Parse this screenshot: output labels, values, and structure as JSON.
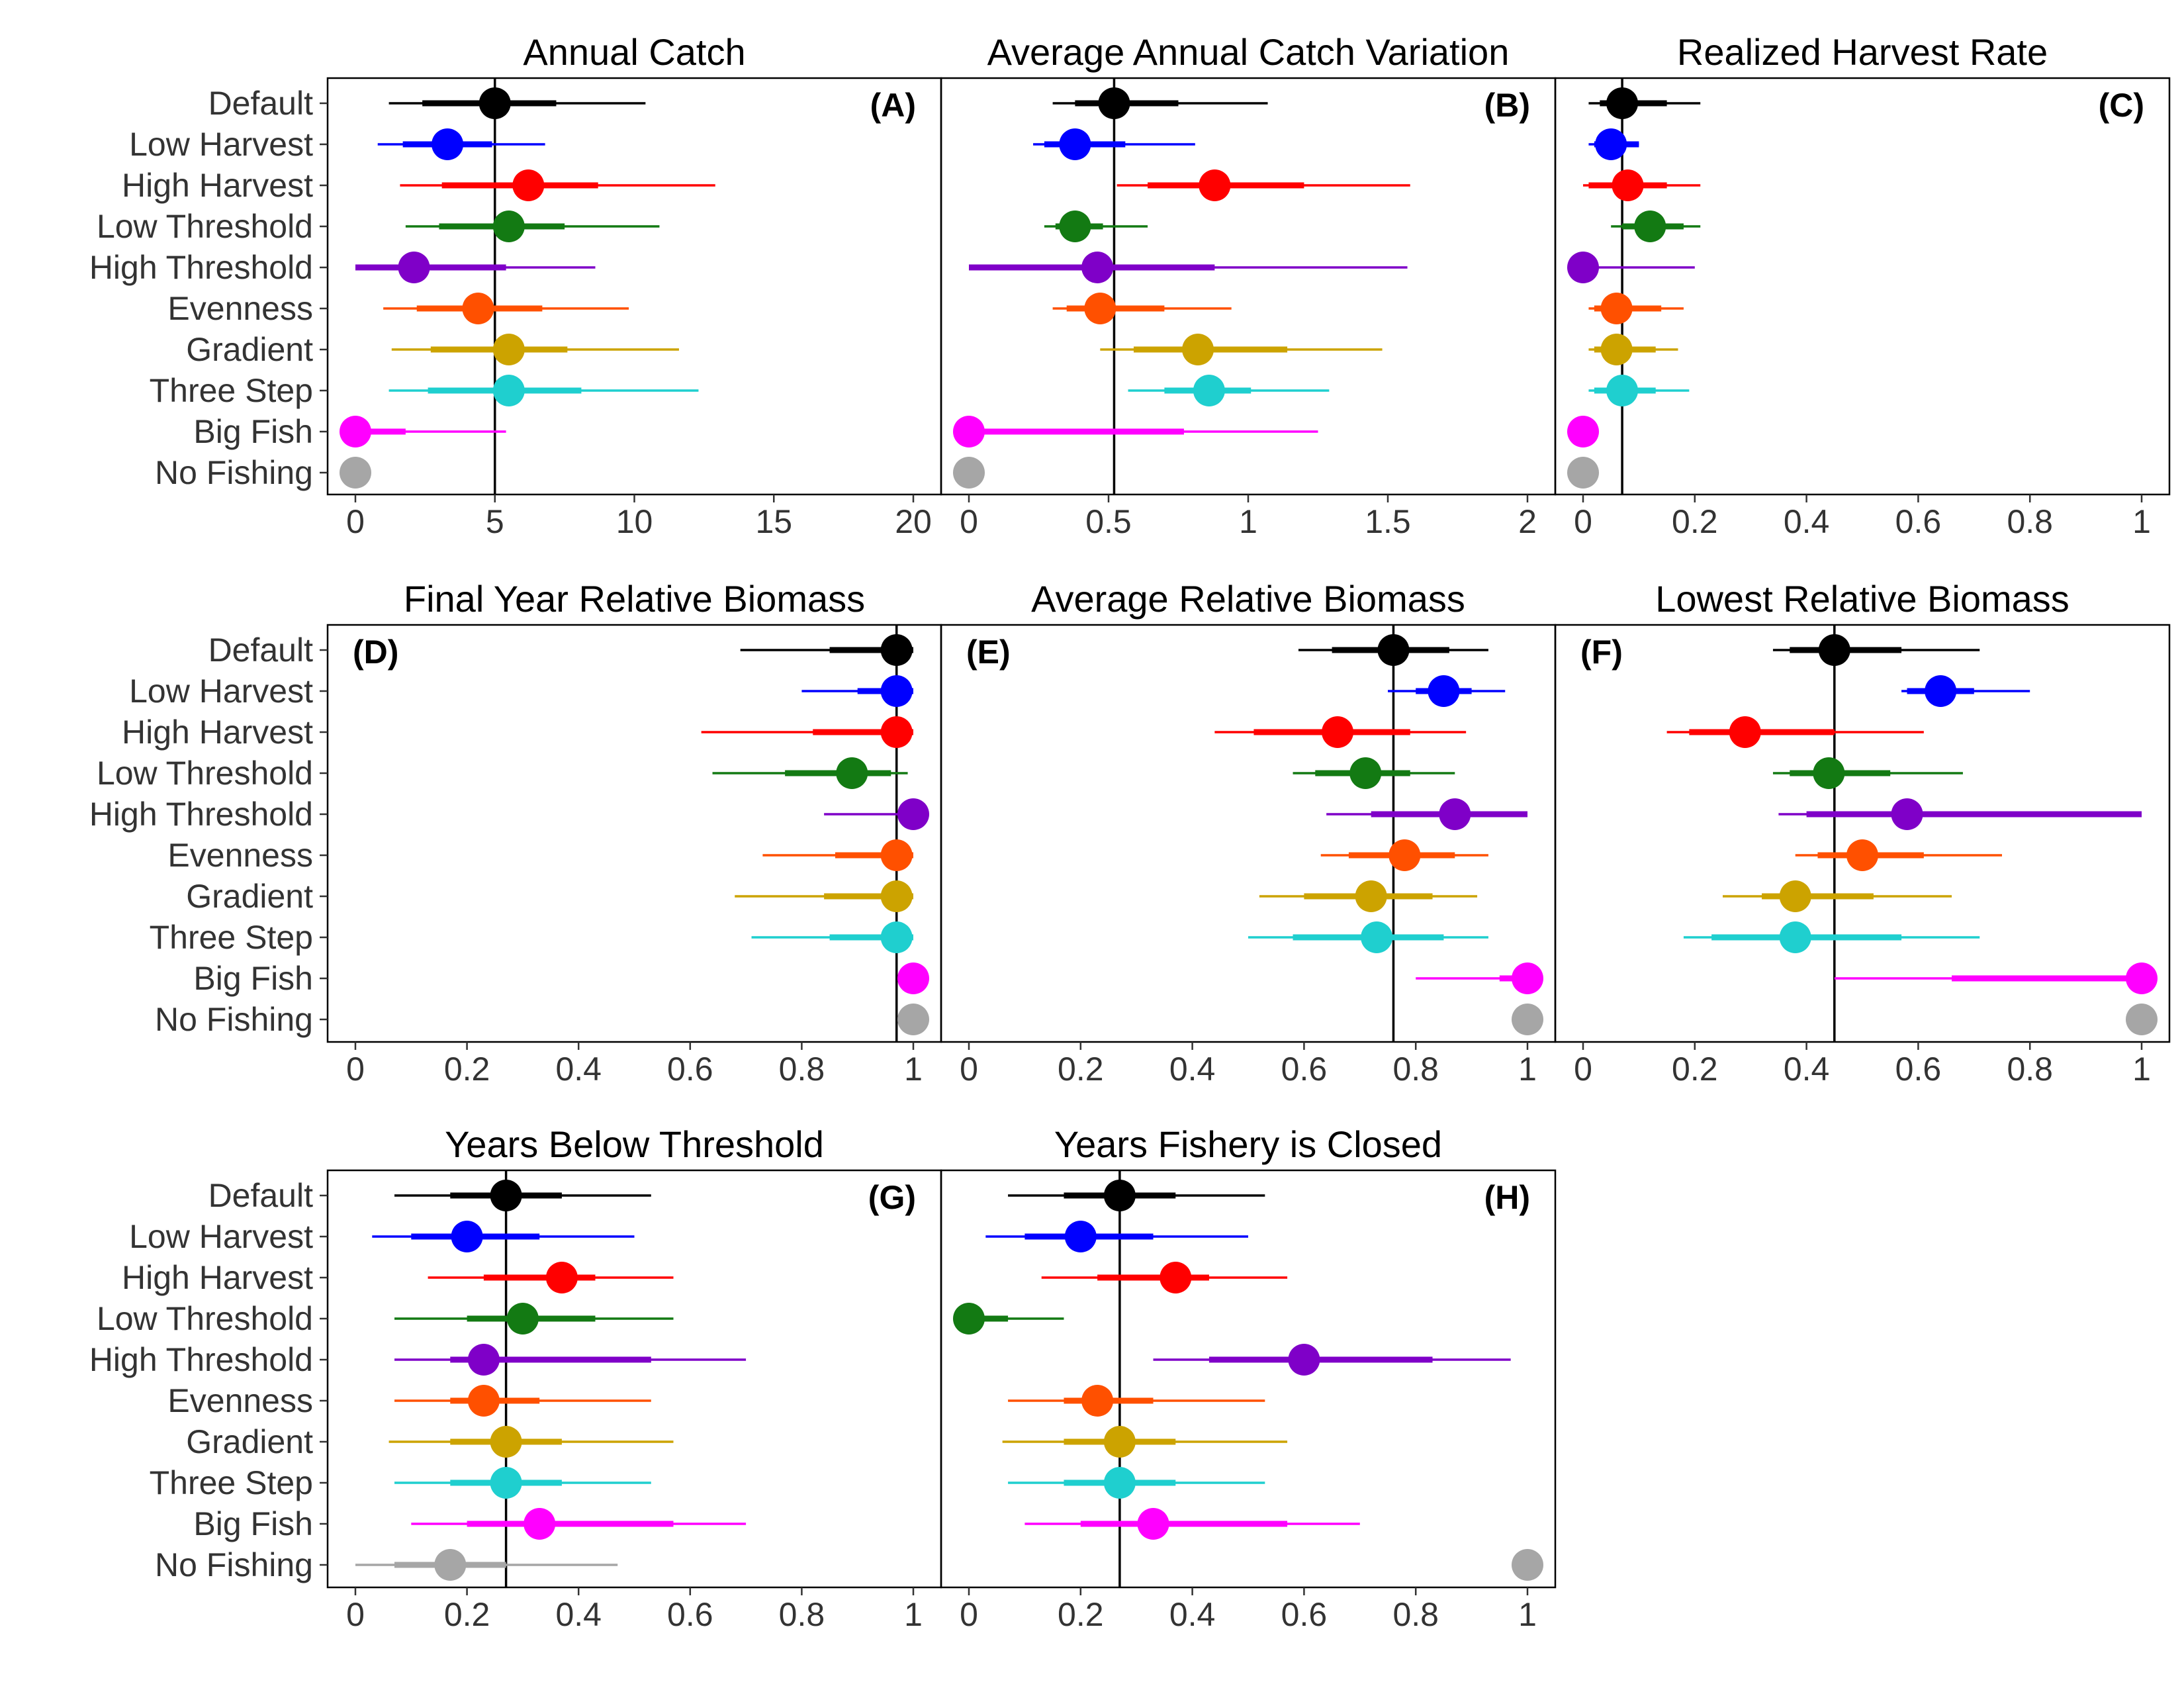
{
  "chart_data": {
    "type": "scatter",
    "layout": "3 rows x 3 panels, horizontal point-range plots sharing scenario rows",
    "scenarios": [
      "Default",
      "Low Harvest",
      "High Harvest",
      "Low Threshold",
      "High Threshold",
      "Evenness",
      "Gradient",
      "Three Step",
      "Big Fish",
      "No Fishing"
    ],
    "colors": {
      "Default": "#000000",
      "Low Harvest": "#0000ff",
      "High Harvest": "#ff0000",
      "Low Threshold": "#137a13",
      "High Threshold": "#7f00c8",
      "Evenness": "#ff5000",
      "Gradient": "#cca300",
      "Three Step": "#1fcfcf",
      "Big Fish": "#ff00ff",
      "No Fishing": "#a6a6a6"
    },
    "panels": [
      {
        "label": "(A)",
        "title": "Annual Catch",
        "label_pos": "top-right",
        "xlim": [
          0,
          20
        ],
        "ticks": [
          0,
          5,
          10,
          15,
          20
        ],
        "tick_labels": [
          "0",
          "5",
          "10",
          "15",
          "20"
        ],
        "ref": 5.0,
        "points": [
          {
            "median": 5.0,
            "inner": [
              2.4,
              7.2
            ],
            "outer": [
              1.2,
              10.4
            ]
          },
          {
            "median": 3.3,
            "inner": [
              1.7,
              4.9
            ],
            "outer": [
              0.8,
              6.8
            ]
          },
          {
            "median": 6.2,
            "inner": [
              3.1,
              8.7
            ],
            "outer": [
              1.6,
              12.9
            ]
          },
          {
            "median": 5.5,
            "inner": [
              3.0,
              7.5
            ],
            "outer": [
              1.8,
              10.9
            ]
          },
          {
            "median": 2.1,
            "inner": [
              0.0,
              5.4
            ],
            "outer": [
              0.0,
              8.6
            ]
          },
          {
            "median": 4.4,
            "inner": [
              2.2,
              6.7
            ],
            "outer": [
              1.0,
              9.8
            ]
          },
          {
            "median": 5.5,
            "inner": [
              2.7,
              7.6
            ],
            "outer": [
              1.3,
              11.6
            ]
          },
          {
            "median": 5.5,
            "inner": [
              2.6,
              8.1
            ],
            "outer": [
              1.2,
              12.3
            ]
          },
          {
            "median": 0.0,
            "inner": [
              0.0,
              1.8
            ],
            "outer": [
              0.0,
              5.4
            ]
          },
          {
            "median": 0.0
          }
        ]
      },
      {
        "label": "(B)",
        "title": "Average Annual Catch Variation",
        "label_pos": "top-right",
        "xlim": [
          0,
          2
        ],
        "ticks": [
          0,
          0.5,
          1,
          1.5,
          2
        ],
        "tick_labels": [
          "0",
          "0.5",
          "1",
          "1.5",
          "2"
        ],
        "ref": 0.52,
        "points": [
          {
            "median": 0.52,
            "inner": [
              0.38,
              0.75
            ],
            "outer": [
              0.3,
              1.07
            ]
          },
          {
            "median": 0.38,
            "inner": [
              0.27,
              0.56
            ],
            "outer": [
              0.23,
              0.81
            ]
          },
          {
            "median": 0.88,
            "inner": [
              0.64,
              1.2
            ],
            "outer": [
              0.53,
              1.58
            ]
          },
          {
            "median": 0.38,
            "inner": [
              0.31,
              0.48
            ],
            "outer": [
              0.27,
              0.64
            ]
          },
          {
            "median": 0.46,
            "inner": [
              0.0,
              0.88
            ],
            "outer": [
              0.0,
              1.57
            ]
          },
          {
            "median": 0.47,
            "inner": [
              0.35,
              0.7
            ],
            "outer": [
              0.3,
              0.94
            ]
          },
          {
            "median": 0.82,
            "inner": [
              0.59,
              1.14
            ],
            "outer": [
              0.47,
              1.48
            ]
          },
          {
            "median": 0.86,
            "inner": [
              0.7,
              1.01
            ],
            "outer": [
              0.57,
              1.29
            ]
          },
          {
            "median": 0.0,
            "inner": [
              0.0,
              0.77
            ],
            "outer": [
              0.0,
              1.25
            ]
          },
          {
            "median": 0.0
          }
        ]
      },
      {
        "label": "(C)",
        "title": "Realized Harvest Rate",
        "label_pos": "top-right",
        "xlim": [
          0,
          1
        ],
        "ticks": [
          0,
          0.2,
          0.4,
          0.6,
          0.8,
          1
        ],
        "tick_labels": [
          "0",
          "0.2",
          "0.4",
          "0.6",
          "0.8",
          "1"
        ],
        "ref": 0.07,
        "points": [
          {
            "median": 0.07,
            "inner": [
              0.03,
              0.15
            ],
            "outer": [
              0.01,
              0.21
            ]
          },
          {
            "median": 0.05,
            "inner": [
              0.02,
              0.1
            ],
            "outer": [
              0.01,
              0.1
            ]
          },
          {
            "median": 0.08,
            "inner": [
              0.01,
              0.15
            ],
            "outer": [
              0.0,
              0.21
            ]
          },
          {
            "median": 0.12,
            "inner": [
              0.07,
              0.18
            ],
            "outer": [
              0.05,
              0.21
            ]
          },
          {
            "median": 0.0,
            "inner": [
              0.0,
              0.0
            ],
            "outer": [
              0.0,
              0.2
            ]
          },
          {
            "median": 0.06,
            "inner": [
              0.02,
              0.14
            ],
            "outer": [
              0.01,
              0.18
            ]
          },
          {
            "median": 0.06,
            "inner": [
              0.02,
              0.13
            ],
            "outer": [
              0.01,
              0.17
            ]
          },
          {
            "median": 0.07,
            "inner": [
              0.02,
              0.13
            ],
            "outer": [
              0.01,
              0.19
            ]
          },
          {
            "median": 0.0
          },
          {
            "median": 0.0
          }
        ]
      },
      {
        "label": "(D)",
        "title": "Final Year Relative Biomass",
        "label_pos": "top-left",
        "xlim": [
          0,
          1
        ],
        "ticks": [
          0,
          0.2,
          0.4,
          0.6,
          0.8,
          1
        ],
        "tick_labels": [
          "0",
          "0.2",
          "0.4",
          "0.6",
          "0.8",
          "1"
        ],
        "ref": 0.97,
        "points": [
          {
            "median": 0.97,
            "inner": [
              0.85,
              1.0
            ],
            "outer": [
              0.69,
              1.0
            ]
          },
          {
            "median": 0.97,
            "inner": [
              0.9,
              1.0
            ],
            "outer": [
              0.8,
              1.0
            ]
          },
          {
            "median": 0.97,
            "inner": [
              0.82,
              1.0
            ],
            "outer": [
              0.62,
              1.0
            ]
          },
          {
            "median": 0.89,
            "inner": [
              0.77,
              0.96
            ],
            "outer": [
              0.64,
              0.99
            ]
          },
          {
            "median": 1.0,
            "inner": [
              1.0,
              1.0
            ],
            "outer": [
              0.84,
              1.0
            ]
          },
          {
            "median": 0.97,
            "inner": [
              0.86,
              1.0
            ],
            "outer": [
              0.73,
              1.0
            ]
          },
          {
            "median": 0.97,
            "inner": [
              0.84,
              1.0
            ],
            "outer": [
              0.68,
              1.0
            ]
          },
          {
            "median": 0.97,
            "inner": [
              0.85,
              1.0
            ],
            "outer": [
              0.71,
              1.0
            ]
          },
          {
            "median": 1.0
          },
          {
            "median": 1.0
          }
        ]
      },
      {
        "label": "(E)",
        "title": "Average Relative Biomass",
        "label_pos": "top-left",
        "xlim": [
          0,
          1
        ],
        "ticks": [
          0,
          0.2,
          0.4,
          0.6,
          0.8,
          1
        ],
        "tick_labels": [
          "0",
          "0.2",
          "0.4",
          "0.6",
          "0.8",
          "1"
        ],
        "ref": 0.76,
        "points": [
          {
            "median": 0.76,
            "inner": [
              0.65,
              0.86
            ],
            "outer": [
              0.59,
              0.93
            ]
          },
          {
            "median": 0.85,
            "inner": [
              0.8,
              0.9
            ],
            "outer": [
              0.75,
              0.96
            ]
          },
          {
            "median": 0.66,
            "inner": [
              0.51,
              0.79
            ],
            "outer": [
              0.44,
              0.89
            ]
          },
          {
            "median": 0.71,
            "inner": [
              0.62,
              0.79
            ],
            "outer": [
              0.58,
              0.87
            ]
          },
          {
            "median": 0.87,
            "inner": [
              0.72,
              1.0
            ],
            "outer": [
              0.64,
              1.0
            ]
          },
          {
            "median": 0.78,
            "inner": [
              0.68,
              0.87
            ],
            "outer": [
              0.63,
              0.93
            ]
          },
          {
            "median": 0.72,
            "inner": [
              0.6,
              0.83
            ],
            "outer": [
              0.52,
              0.91
            ]
          },
          {
            "median": 0.73,
            "inner": [
              0.58,
              0.85
            ],
            "outer": [
              0.5,
              0.93
            ]
          },
          {
            "median": 1.0,
            "inner": [
              0.95,
              1.0
            ],
            "outer": [
              0.8,
              1.0
            ]
          },
          {
            "median": 1.0
          }
        ]
      },
      {
        "label": "(F)",
        "title": "Lowest Relative Biomass",
        "label_pos": "top-left",
        "xlim": [
          0,
          1
        ],
        "ticks": [
          0,
          0.2,
          0.4,
          0.6,
          0.8,
          1
        ],
        "tick_labels": [
          "0",
          "0.2",
          "0.4",
          "0.6",
          "0.8",
          "1"
        ],
        "ref": 0.45,
        "points": [
          {
            "median": 0.45,
            "inner": [
              0.37,
              0.57
            ],
            "outer": [
              0.34,
              0.71
            ]
          },
          {
            "median": 0.64,
            "inner": [
              0.58,
              0.7
            ],
            "outer": [
              0.57,
              0.8
            ]
          },
          {
            "median": 0.29,
            "inner": [
              0.19,
              0.45
            ],
            "outer": [
              0.15,
              0.61
            ]
          },
          {
            "median": 0.44,
            "inner": [
              0.37,
              0.55
            ],
            "outer": [
              0.34,
              0.68
            ]
          },
          {
            "median": 0.58,
            "inner": [
              0.4,
              1.0
            ],
            "outer": [
              0.35,
              1.0
            ]
          },
          {
            "median": 0.5,
            "inner": [
              0.42,
              0.61
            ],
            "outer": [
              0.38,
              0.75
            ]
          },
          {
            "median": 0.38,
            "inner": [
              0.32,
              0.52
            ],
            "outer": [
              0.25,
              0.66
            ]
          },
          {
            "median": 0.38,
            "inner": [
              0.23,
              0.57
            ],
            "outer": [
              0.18,
              0.71
            ]
          },
          {
            "median": 1.0,
            "inner": [
              0.66,
              1.0
            ],
            "outer": [
              0.45,
              1.0
            ]
          },
          {
            "median": 1.0
          }
        ]
      },
      {
        "label": "(G)",
        "title": "Years Below Threshold",
        "label_pos": "top-right",
        "xlim": [
          0,
          1
        ],
        "ticks": [
          0,
          0.2,
          0.4,
          0.6,
          0.8,
          1
        ],
        "tick_labels": [
          "0",
          "0.2",
          "0.4",
          "0.6",
          "0.8",
          "1"
        ],
        "ref": 0.27,
        "points": [
          {
            "median": 0.27,
            "inner": [
              0.17,
              0.37
            ],
            "outer": [
              0.07,
              0.53
            ]
          },
          {
            "median": 0.2,
            "inner": [
              0.1,
              0.33
            ],
            "outer": [
              0.03,
              0.5
            ]
          },
          {
            "median": 0.37,
            "inner": [
              0.23,
              0.43
            ],
            "outer": [
              0.13,
              0.57
            ]
          },
          {
            "median": 0.3,
            "inner": [
              0.2,
              0.43
            ],
            "outer": [
              0.07,
              0.57
            ]
          },
          {
            "median": 0.23,
            "inner": [
              0.17,
              0.53
            ],
            "outer": [
              0.07,
              0.7
            ]
          },
          {
            "median": 0.23,
            "inner": [
              0.17,
              0.33
            ],
            "outer": [
              0.07,
              0.53
            ]
          },
          {
            "median": 0.27,
            "inner": [
              0.17,
              0.37
            ],
            "outer": [
              0.06,
              0.57
            ]
          },
          {
            "median": 0.27,
            "inner": [
              0.17,
              0.37
            ],
            "outer": [
              0.07,
              0.53
            ]
          },
          {
            "median": 0.33,
            "inner": [
              0.2,
              0.57
            ],
            "outer": [
              0.1,
              0.7
            ]
          },
          {
            "median": 0.17,
            "inner": [
              0.07,
              0.27
            ],
            "outer": [
              0.0,
              0.47
            ]
          }
        ]
      },
      {
        "label": "(H)",
        "title": "Years Fishery is Closed",
        "label_pos": "top-right",
        "xlim": [
          0,
          1
        ],
        "ticks": [
          0,
          0.2,
          0.4,
          0.6,
          0.8,
          1
        ],
        "tick_labels": [
          "0",
          "0.2",
          "0.4",
          "0.6",
          "0.8",
          "1"
        ],
        "ref": 0.27,
        "points": [
          {
            "median": 0.27,
            "inner": [
              0.17,
              0.37
            ],
            "outer": [
              0.07,
              0.53
            ]
          },
          {
            "median": 0.2,
            "inner": [
              0.1,
              0.33
            ],
            "outer": [
              0.03,
              0.5
            ]
          },
          {
            "median": 0.37,
            "inner": [
              0.23,
              0.43
            ],
            "outer": [
              0.13,
              0.57
            ]
          },
          {
            "median": 0.0,
            "inner": [
              0.0,
              0.07
            ],
            "outer": [
              0.0,
              0.17
            ]
          },
          {
            "median": 0.6,
            "inner": [
              0.43,
              0.83
            ],
            "outer": [
              0.33,
              0.97
            ]
          },
          {
            "median": 0.23,
            "inner": [
              0.17,
              0.33
            ],
            "outer": [
              0.07,
              0.53
            ]
          },
          {
            "median": 0.27,
            "inner": [
              0.17,
              0.37
            ],
            "outer": [
              0.06,
              0.57
            ]
          },
          {
            "median": 0.27,
            "inner": [
              0.17,
              0.37
            ],
            "outer": [
              0.07,
              0.53
            ]
          },
          {
            "median": 0.33,
            "inner": [
              0.2,
              0.57
            ],
            "outer": [
              0.1,
              0.7
            ]
          },
          {
            "median": 1.0
          }
        ]
      }
    ]
  }
}
